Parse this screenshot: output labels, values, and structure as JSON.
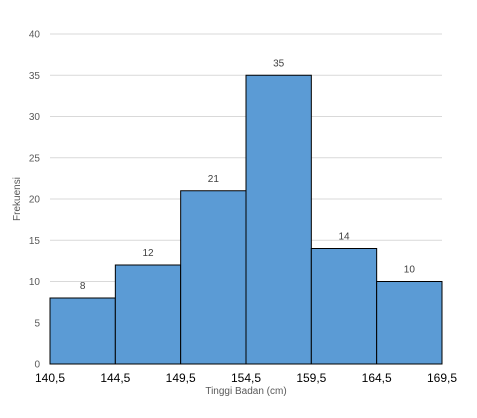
{
  "chart_data": {
    "type": "bar",
    "subtype": "histogram",
    "bin_edges": [
      "140,5",
      "144,5",
      "149,5",
      "154,5",
      "159,5",
      "164,5",
      "169,5"
    ],
    "values": [
      8,
      12,
      21,
      35,
      14,
      10
    ],
    "data_labels": [
      "8",
      "12",
      "21",
      "35",
      "14",
      "10"
    ],
    "xlabel": "Tinggi Badan (cm)",
    "ylabel": "Frekuensi",
    "ylim": [
      0,
      40
    ],
    "y_ticks": [
      "0",
      "5",
      "10",
      "15",
      "20",
      "25",
      "30",
      "35",
      "40"
    ],
    "grid": true,
    "legend": "none",
    "bar_color": "#5b9bd5",
    "bar_edge_color": "#000000",
    "grid_color": "#d9d9d9"
  }
}
